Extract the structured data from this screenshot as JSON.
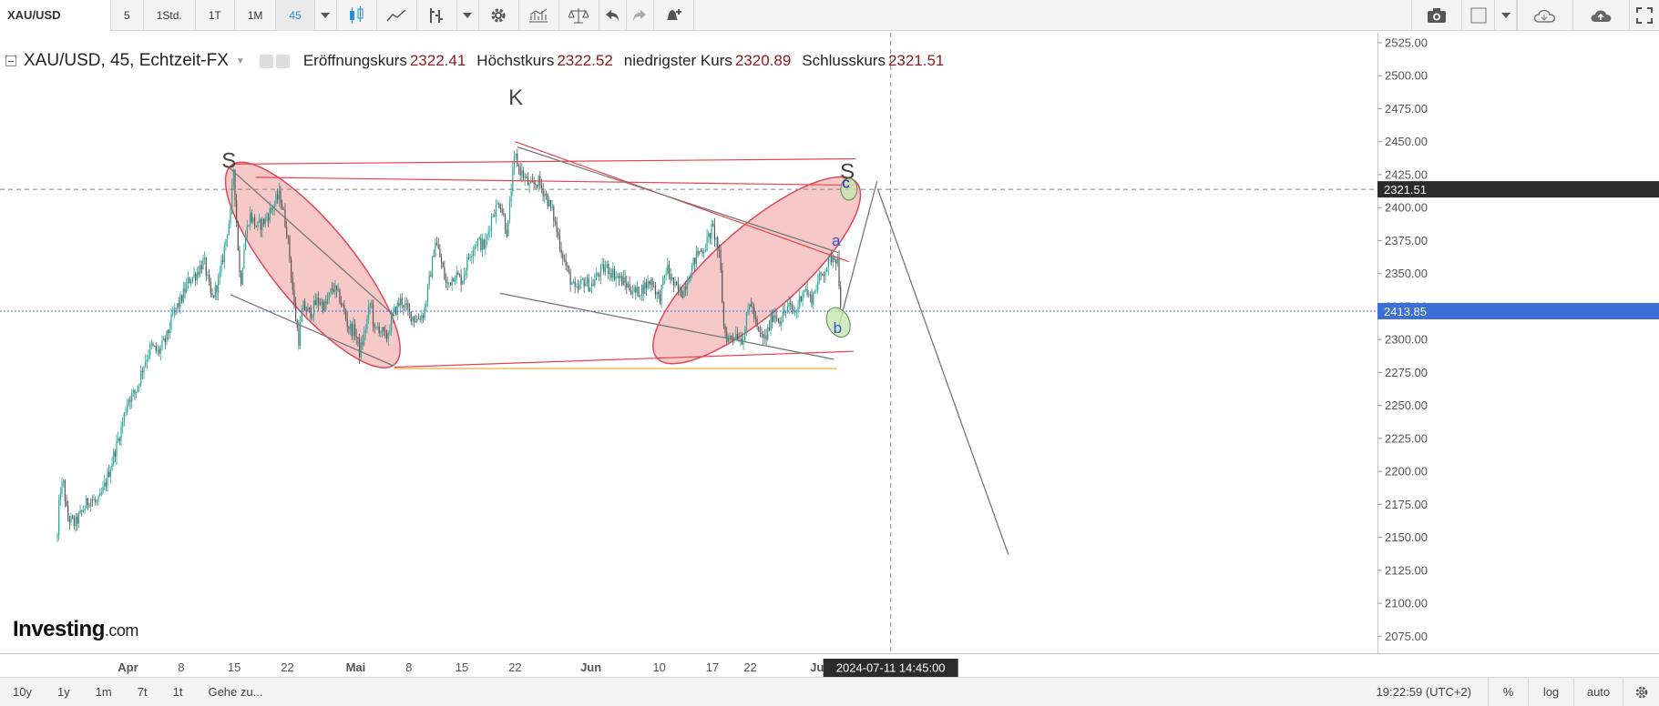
{
  "toolbar": {
    "symbol": "XAU/USD",
    "intervals": [
      "5",
      "1Std.",
      "1T",
      "1M",
      "45"
    ],
    "active_interval": "45"
  },
  "legend": {
    "title": "XAU/USD, 45, Echtzeit-FX",
    "open_label": "Eröffnungskurs",
    "open_value": "2322.41",
    "high_label": "Höchstkurs",
    "high_value": "2322.52",
    "low_label": "niedrigster Kurs",
    "low_value": "2320.89",
    "close_label": "Schlusskurs",
    "close_value": "2321.51"
  },
  "logo": {
    "main": "Investing",
    "suffix": ".com"
  },
  "bottombar": {
    "ranges": [
      "10y",
      "1y",
      "1m",
      "7t",
      "1t"
    ],
    "goto": "Gehe zu...",
    "clock": "19:22:59 (UTC+2)",
    "percent": "%",
    "log": "log",
    "auto": "auto"
  },
  "colors": {
    "up": "#26a69a",
    "down": "#555555",
    "annotation": "#e8434b",
    "ellipse_fill": "#f2a7a7",
    "ellipse_stroke": "#e0475a",
    "trend_gray": "#777777",
    "orange": "#f0a030",
    "price_line": "#3a6fd8",
    "highlight_green": "#c8e6b0"
  },
  "chart_data": {
    "type": "candlestick",
    "instrument": "XAU/USD",
    "ylim": [
      2060,
      2530
    ],
    "y_ticks": [
      2075,
      2100,
      2125,
      2150,
      2175,
      2200,
      2225,
      2250,
      2275,
      2300,
      2325,
      2350,
      2375,
      2400,
      2425,
      2450,
      2475,
      2500,
      2525
    ],
    "x_ticks": [
      {
        "label": "Apr",
        "day": 0,
        "bold": true
      },
      {
        "label": "8",
        "day": 7
      },
      {
        "label": "15",
        "day": 14
      },
      {
        "label": "22",
        "day": 21
      },
      {
        "label": "Mai",
        "day": 30,
        "bold": true
      },
      {
        "label": "8",
        "day": 37
      },
      {
        "label": "15",
        "day": 44
      },
      {
        "label": "22",
        "day": 51
      },
      {
        "label": "Jun",
        "day": 61,
        "bold": true
      },
      {
        "label": "10",
        "day": 70
      },
      {
        "label": "17",
        "day": 77
      },
      {
        "label": "22",
        "day": 82
      },
      {
        "label": "Jul",
        "day": 91,
        "bold": true
      }
    ],
    "price_path": [
      [
        -9.3,
        2150
      ],
      [
        -9.0,
        2185
      ],
      [
        -8.5,
        2190
      ],
      [
        -8.0,
        2165
      ],
      [
        -7.0,
        2160
      ],
      [
        -6.0,
        2170
      ],
      [
        -5.0,
        2180
      ],
      [
        -4.0,
        2175
      ],
      [
        -3.0,
        2190
      ],
      [
        -2.0,
        2210
      ],
      [
        -1.0,
        2230
      ],
      [
        0.0,
        2255
      ],
      [
        1.0,
        2260
      ],
      [
        2.0,
        2280
      ],
      [
        3.0,
        2295
      ],
      [
        4.0,
        2290
      ],
      [
        5.0,
        2300
      ],
      [
        6.0,
        2320
      ],
      [
        7.0,
        2330
      ],
      [
        8.0,
        2345
      ],
      [
        9.0,
        2350
      ],
      [
        10.0,
        2360
      ],
      [
        11.0,
        2330
      ],
      [
        12.0,
        2345
      ],
      [
        13.0,
        2380
      ],
      [
        13.5,
        2395
      ],
      [
        13.9,
        2430
      ],
      [
        14.3,
        2390
      ],
      [
        14.8,
        2340
      ],
      [
        15.3,
        2370
      ],
      [
        16.0,
        2395
      ],
      [
        17.0,
        2385
      ],
      [
        18.0,
        2390
      ],
      [
        19.0,
        2400
      ],
      [
        20.0,
        2410
      ],
      [
        20.5,
        2395
      ],
      [
        21.0,
        2380
      ],
      [
        22.0,
        2320
      ],
      [
        22.5,
        2300
      ],
      [
        23.0,
        2325
      ],
      [
        24.0,
        2320
      ],
      [
        25.0,
        2330
      ],
      [
        26.0,
        2325
      ],
      [
        27.0,
        2340
      ],
      [
        28.0,
        2330
      ],
      [
        29.0,
        2310
      ],
      [
        30.0,
        2305
      ],
      [
        30.5,
        2290
      ],
      [
        31.0,
        2300
      ],
      [
        32.0,
        2330
      ],
      [
        32.5,
        2305
      ],
      [
        33.0,
        2310
      ],
      [
        34.0,
        2300
      ],
      [
        35.0,
        2320
      ],
      [
        36.0,
        2330
      ],
      [
        37.0,
        2320
      ],
      [
        38.0,
        2315
      ],
      [
        39.0,
        2320
      ],
      [
        40.0,
        2355
      ],
      [
        40.5,
        2375
      ],
      [
        41.0,
        2365
      ],
      [
        42.0,
        2340
      ],
      [
        43.0,
        2350
      ],
      [
        44.0,
        2345
      ],
      [
        45.0,
        2365
      ],
      [
        46.0,
        2375
      ],
      [
        47.0,
        2370
      ],
      [
        48.0,
        2395
      ],
      [
        49.0,
        2405
      ],
      [
        50.0,
        2380
      ],
      [
        50.5,
        2415
      ],
      [
        51.0,
        2440
      ],
      [
        51.5,
        2430
      ],
      [
        52.0,
        2425
      ],
      [
        53.0,
        2415
      ],
      [
        54.0,
        2420
      ],
      [
        55.0,
        2410
      ],
      [
        56.0,
        2395
      ],
      [
        57.0,
        2370
      ],
      [
        58.0,
        2350
      ],
      [
        59.0,
        2335
      ],
      [
        60.0,
        2345
      ],
      [
        61.0,
        2340
      ],
      [
        62.0,
        2350
      ],
      [
        63.0,
        2355
      ],
      [
        64.0,
        2350
      ],
      [
        65.0,
        2345
      ],
      [
        66.0,
        2340
      ],
      [
        67.0,
        2335
      ],
      [
        68.0,
        2340
      ],
      [
        69.0,
        2345
      ],
      [
        70.0,
        2330
      ],
      [
        71.0,
        2355
      ],
      [
        72.0,
        2340
      ],
      [
        73.0,
        2335
      ],
      [
        74.0,
        2350
      ],
      [
        75.0,
        2365
      ],
      [
        76.0,
        2370
      ],
      [
        77.0,
        2385
      ],
      [
        77.5,
        2375
      ],
      [
        78.0,
        2360
      ],
      [
        78.5,
        2310
      ],
      [
        79.0,
        2300
      ],
      [
        80.0,
        2305
      ],
      [
        81.0,
        2300
      ],
      [
        82.0,
        2330
      ],
      [
        83.0,
        2305
      ],
      [
        84.0,
        2300
      ],
      [
        85.0,
        2320
      ],
      [
        86.0,
        2315
      ],
      [
        87.0,
        2325
      ],
      [
        88.0,
        2320
      ],
      [
        89.0,
        2340
      ],
      [
        90.0,
        2330
      ],
      [
        91.0,
        2345
      ],
      [
        92.0,
        2355
      ],
      [
        93.0,
        2365
      ],
      [
        93.5,
        2360
      ],
      [
        94.0,
        2320
      ]
    ],
    "horizontal_lines": [
      {
        "name": "current-price",
        "value": 2321.51
      },
      {
        "name": "crosshair",
        "value": 2413.85
      }
    ],
    "price_labels": [
      "2413.85",
      "2321.51"
    ],
    "crosshair_time": "2024-07-11 14:45:00",
    "annotations": [
      {
        "text": "S",
        "day": 13.3,
        "value": 2430
      },
      {
        "text": "K",
        "day": 51.1,
        "value": 2478
      },
      {
        "text": "S",
        "day": 94.8,
        "value": 2422
      },
      {
        "text": "a",
        "day": 93.3,
        "value": 2371
      },
      {
        "text": "b",
        "day": 93.5,
        "value": 2305
      },
      {
        "text": "c",
        "day": 94.6,
        "value": 2415
      }
    ],
    "trend_lines": [
      {
        "color": "red",
        "from": [
          13.8,
          2433
        ],
        "to": [
          95.9,
          2437
        ]
      },
      {
        "color": "red",
        "from": [
          16.8,
          2423
        ],
        "to": [
          95.6,
          2417
        ]
      },
      {
        "color": "red",
        "from": [
          35.1,
          2279
        ],
        "to": [
          95.6,
          2291
        ]
      },
      {
        "color": "orange",
        "from": [
          35.1,
          2278
        ],
        "to": [
          93.4,
          2278
        ]
      },
      {
        "color": "red",
        "from": [
          51.0,
          2450
        ],
        "to": [
          95.0,
          2359
        ]
      },
      {
        "color": "gray",
        "from": [
          51.3,
          2446
        ],
        "to": [
          93.6,
          2366
        ]
      },
      {
        "color": "gray",
        "from": [
          13.0,
          2432
        ],
        "to": [
          35.1,
          2318
        ]
      },
      {
        "color": "gray",
        "from": [
          13.5,
          2334
        ],
        "to": [
          35.0,
          2280
        ]
      },
      {
        "color": "gray",
        "from": [
          49.0,
          2335
        ],
        "to": [
          93.0,
          2285
        ]
      },
      {
        "color": "gray",
        "from": [
          93.7,
          2311
        ],
        "to": [
          98.7,
          2420
        ]
      },
      {
        "color": "gray",
        "from": [
          98.8,
          2414
        ],
        "to": [
          116.0,
          2137
        ]
      }
    ]
  }
}
